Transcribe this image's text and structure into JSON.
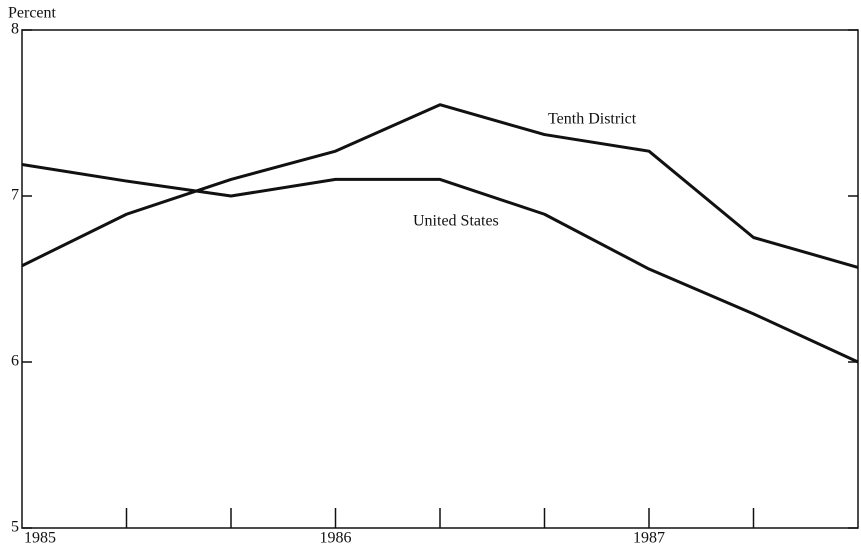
{
  "chart_data": {
    "type": "line",
    "y_label": "Percent",
    "categories": [
      "1985",
      null,
      null,
      "1986",
      null,
      null,
      "1987",
      null,
      null
    ],
    "series": [
      {
        "name": "Tenth District",
        "color": "#111111",
        "values": [
          6.58,
          6.89,
          7.1,
          7.27,
          7.55,
          7.37,
          7.27,
          6.75,
          6.57
        ]
      },
      {
        "name": "United States",
        "color": "#111111",
        "values": [
          7.19,
          7.09,
          7.0,
          7.1,
          7.1,
          6.89,
          6.56,
          6.29,
          6.0
        ]
      }
    ],
    "ylim": [
      5,
      8
    ],
    "yticks": [
      5,
      6,
      7,
      8
    ],
    "grid": false
  }
}
